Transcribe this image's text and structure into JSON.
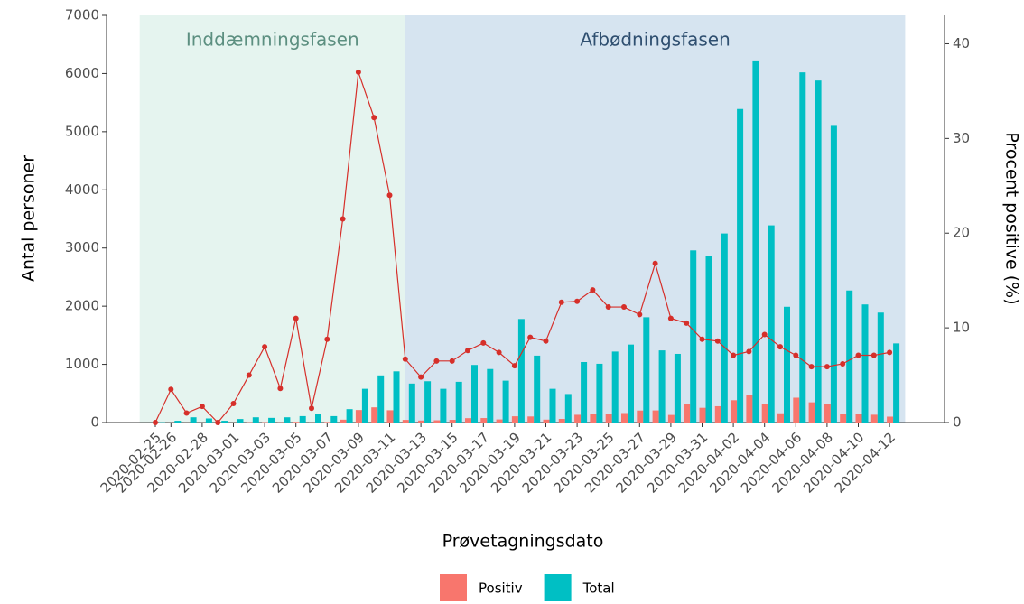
{
  "chart_data": {
    "type": "bar",
    "x_label": "Prøvetagningsdato",
    "y_label": "Antal personer",
    "y2_label": "Procent positive (%)",
    "phases": [
      {
        "label": "Inddæmningsfasen",
        "color": "#e5f4ef",
        "text_color": "#5c8f80"
      },
      {
        "label": "Afbødningsfasen",
        "color": "#d6e4f0",
        "text_color": "#2f4f70"
      }
    ],
    "categories": [
      "2020-02-25",
      "2020-02-26",
      null,
      "2020-02-28",
      null,
      "2020-03-01",
      null,
      "2020-03-03",
      null,
      "2020-03-05",
      null,
      "2020-03-07",
      null,
      "2020-03-09",
      null,
      "2020-03-11",
      null,
      "2020-03-13",
      null,
      "2020-03-15",
      null,
      "2020-03-17",
      null,
      "2020-03-19",
      null,
      "2020-03-21",
      null,
      "2020-03-23",
      null,
      "2020-03-25",
      null,
      "2020-03-27",
      null,
      "2020-03-29",
      null,
      "2020-03-31",
      null,
      "2020-04-02",
      null,
      "2020-04-04",
      null,
      "2020-04-06",
      null,
      "2020-04-08",
      null,
      "2020-04-10",
      null,
      "2020-04-12"
    ],
    "series": [
      {
        "name": "Positiv",
        "color": "#f8766d",
        "values": [
          0,
          1,
          1,
          1,
          0,
          1,
          5,
          6,
          3,
          12,
          2,
          10,
          49,
          215,
          261,
          211,
          45,
          34,
          38,
          46,
          75,
          77,
          53,
          107,
          104,
          50,
          62,
          133,
          141,
          149,
          163,
          206,
          208,
          130,
          311,
          253,
          280,
          383,
          466,
          315,
          159,
          427,
          347,
          316,
          141,
          144,
          134,
          101
        ]
      },
      {
        "name": "Total",
        "color": "#00bfc4",
        "values": [
          5,
          30,
          90,
          70,
          30,
          60,
          90,
          80,
          90,
          110,
          145,
          110,
          230,
          580,
          810,
          880,
          670,
          710,
          580,
          700,
          990,
          920,
          720,
          1780,
          1150,
          580,
          490,
          1040,
          1010,
          1220,
          1340,
          1810,
          1240,
          1180,
          2960,
          2870,
          3250,
          5390,
          6210,
          3390,
          1990,
          6020,
          5880,
          5100,
          2270,
          2030,
          1890,
          1360
        ]
      }
    ],
    "line": {
      "color": "#d62f2a",
      "axis": "y2",
      "values": [
        0,
        3.5,
        1,
        1.7,
        0,
        2,
        5,
        8,
        3.6,
        11,
        1.5,
        8.8,
        21.5,
        37,
        32.2,
        24,
        6.7,
        4.8,
        6.5,
        6.5,
        7.6,
        8.4,
        7.4,
        6,
        9,
        8.6,
        12.7,
        12.8,
        14,
        12.2,
        12.2,
        11.4,
        16.8,
        11,
        10.5,
        8.8,
        8.6,
        7.1,
        7.5,
        9.3,
        8,
        7.1,
        5.9,
        5.9,
        6.2,
        7.1,
        7.1,
        7.4
      ]
    },
    "ylim": [
      0,
      7000
    ],
    "yticks": [
      0,
      1000,
      2000,
      3000,
      4000,
      5000,
      6000,
      7000
    ],
    "y2lim": [
      0,
      43
    ],
    "y2ticks": [
      0,
      10,
      20,
      30,
      40
    ]
  }
}
